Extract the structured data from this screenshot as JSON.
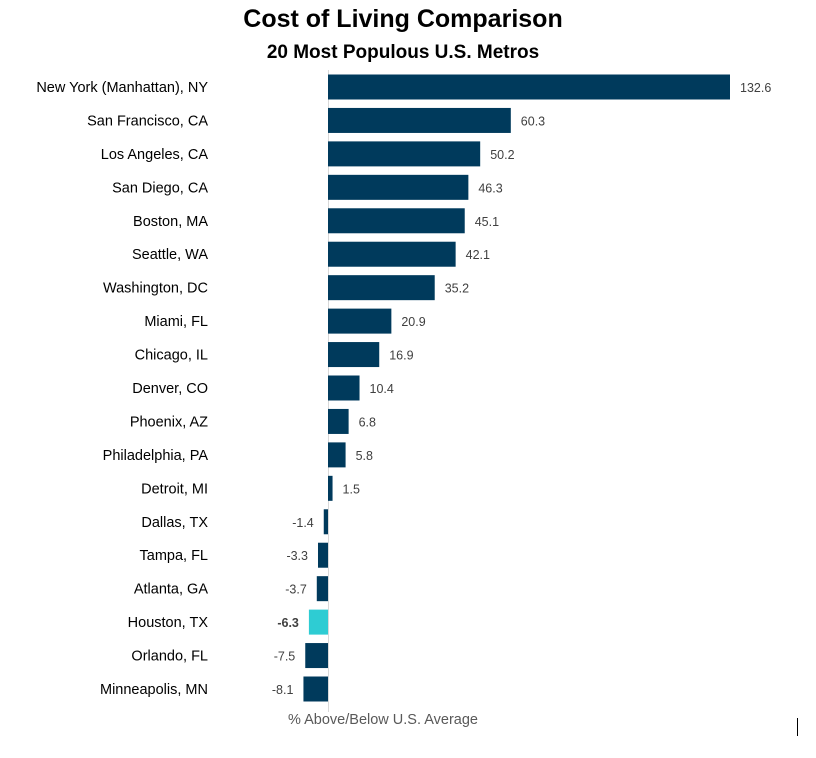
{
  "chart_data": {
    "type": "bar",
    "orientation": "horizontal",
    "title": "Cost of Living Comparison",
    "subtitle": "20 Most Populous U.S. Metros",
    "xlabel": "% Above/Below U.S. Average",
    "ylabel": "",
    "xlim": [
      -8.1,
      132.6
    ],
    "grid": false,
    "categories": [
      "New York (Manhattan), NY",
      "San Francisco, CA",
      "Los Angeles, CA",
      "San Diego, CA",
      "Boston, MA",
      "Seattle, WA",
      "Washington, DC",
      "Miami, FL",
      "Chicago, IL",
      "Denver, CO",
      "Phoenix, AZ",
      "Philadelphia, PA",
      "Detroit, MI",
      "Dallas, TX",
      "Tampa, FL",
      "Atlanta, GA",
      "Houston, TX",
      "Orlando, FL",
      "Minneapolis, MN"
    ],
    "values": [
      132.6,
      60.3,
      50.2,
      46.3,
      45.1,
      42.1,
      35.2,
      20.9,
      16.9,
      10.4,
      6.8,
      5.8,
      1.5,
      -1.4,
      -3.3,
      -3.7,
      -6.3,
      -7.5,
      -8.1
    ],
    "highlight": "Houston, TX",
    "colors": {
      "bar": "#003A5C",
      "highlight": "#2ECCD3",
      "axis": "#D9D9D9"
    }
  }
}
